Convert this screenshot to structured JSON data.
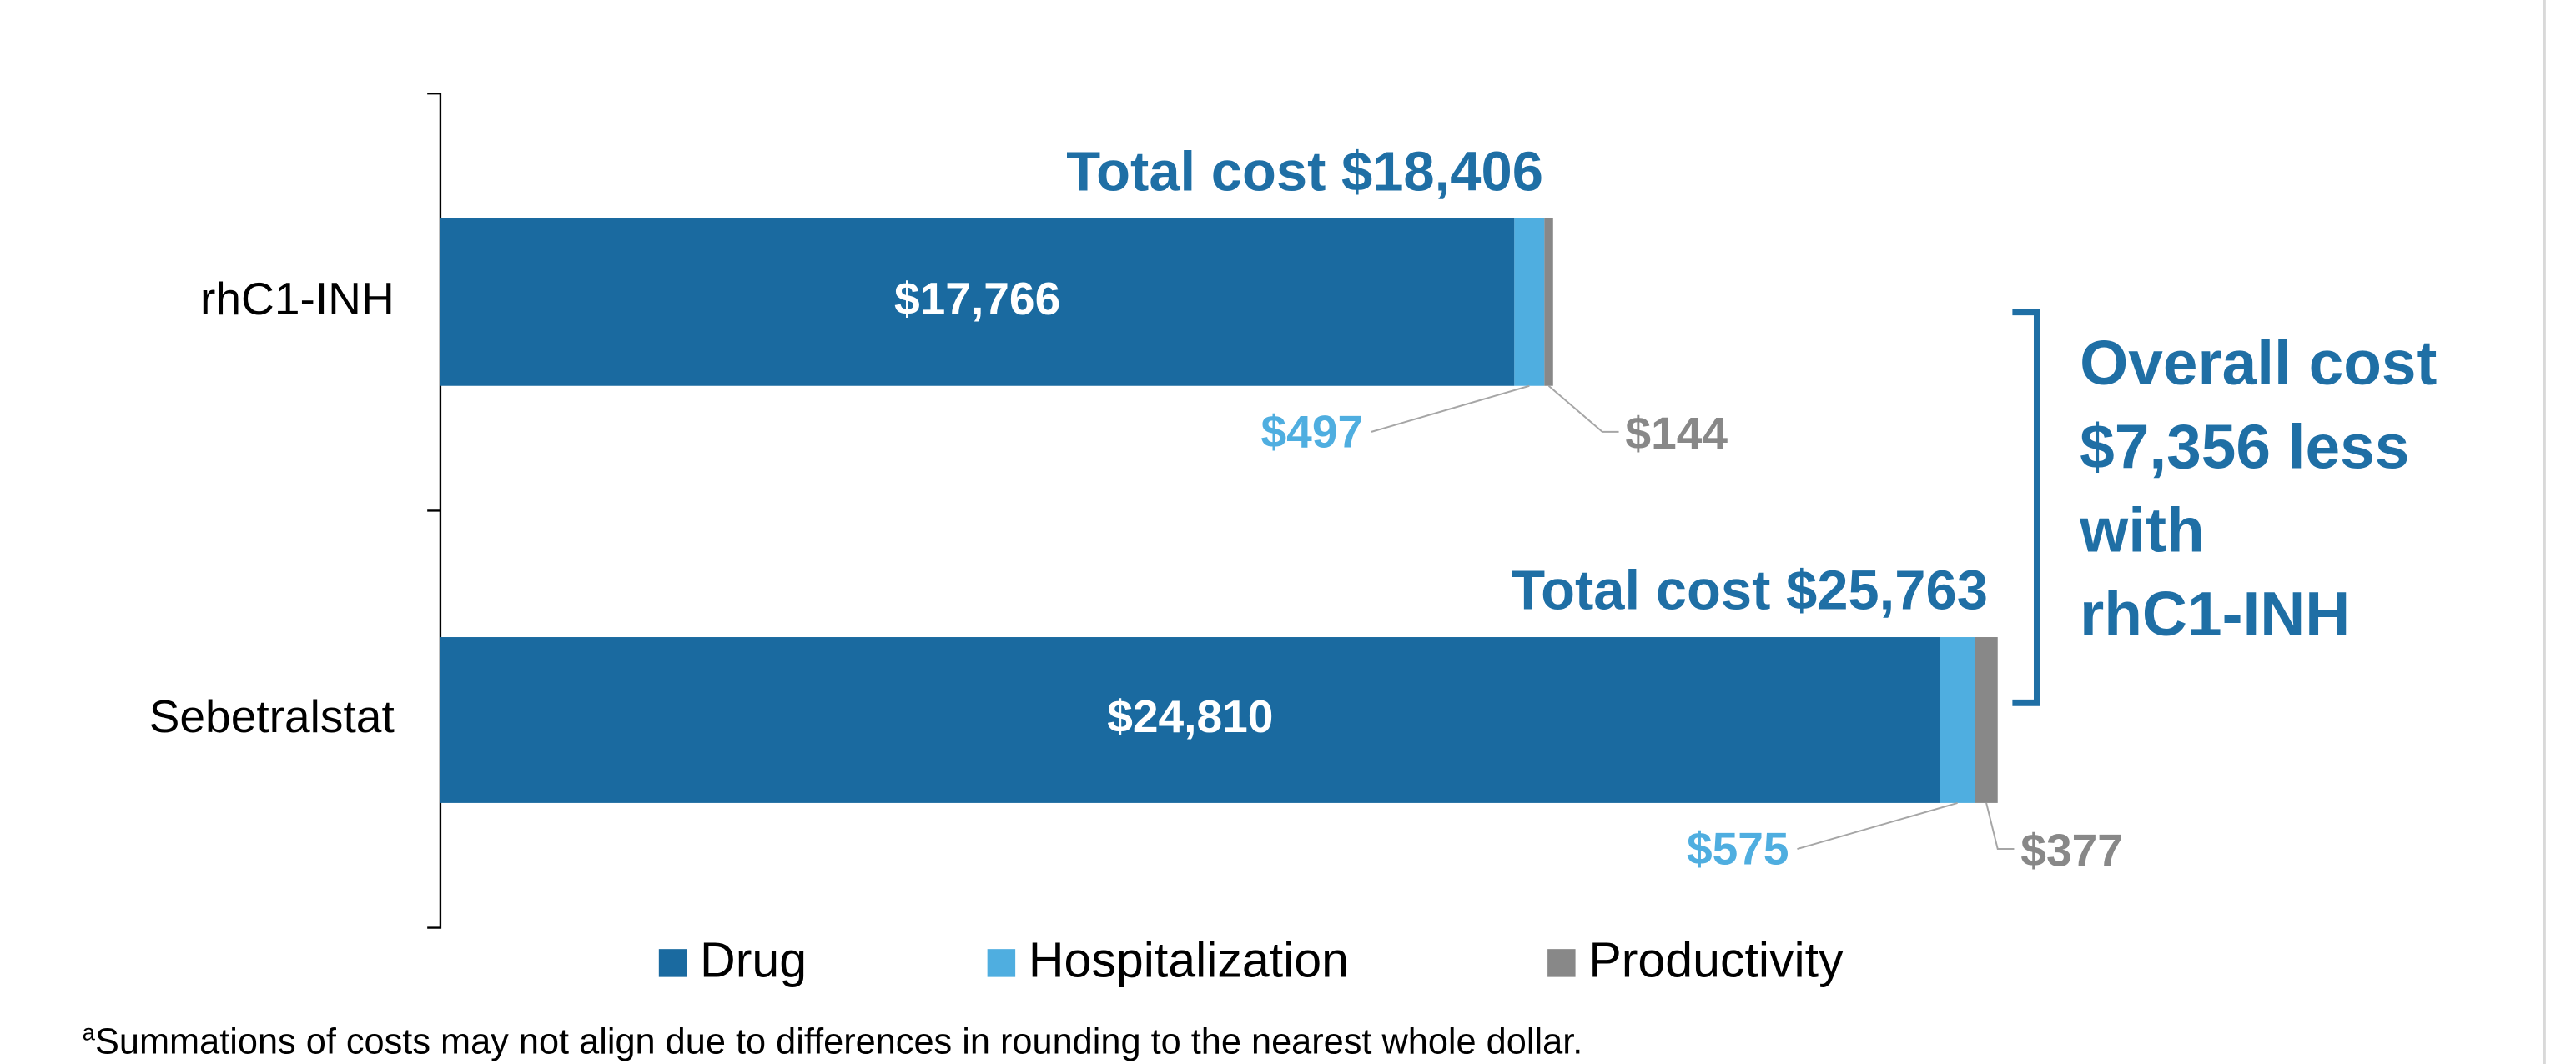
{
  "chart_data": {
    "type": "stacked-bar-horizontal",
    "categories": [
      "rhC1-INH",
      "Sebetralstat"
    ],
    "series": [
      {
        "name": "Drug",
        "color": "#1a6aa0",
        "values": [
          17766,
          24810
        ],
        "value_labels": [
          "$17,766",
          "$24,810"
        ]
      },
      {
        "name": "Hospitalization",
        "color": "#4faee0",
        "values": [
          497,
          575
        ],
        "value_labels": [
          "$497",
          "$575"
        ]
      },
      {
        "name": "Productivity",
        "color": "#888888",
        "values": [
          144,
          377
        ],
        "value_labels": [
          "$144",
          "$377"
        ]
      }
    ],
    "xlim": [
      0,
      35000
    ],
    "total_labels": [
      "Total cost $18,406",
      "Total cost $25,763"
    ],
    "annotation": {
      "lines": [
        "Overall cost",
        "$7,356 less",
        "with",
        "rhC1-INH"
      ]
    },
    "footnote": {
      "marker": "a",
      "text": "Summations of costs may not align due to differences in rounding to the nearest whole dollar."
    }
  }
}
